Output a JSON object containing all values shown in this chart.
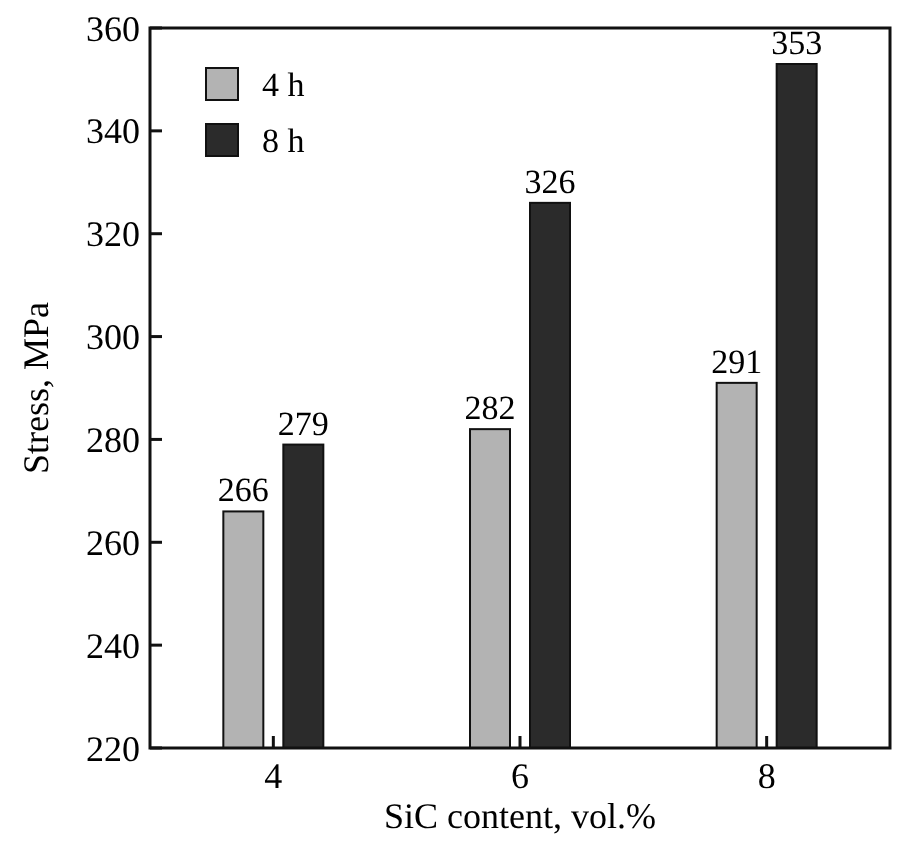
{
  "chart_data": {
    "type": "bar",
    "xlabel": "SiC content, vol.%",
    "ylabel": "Stress, MPa",
    "categories": [
      "4",
      "6",
      "8"
    ],
    "series": [
      {
        "name": "4 h",
        "color": "#b3b3b3",
        "values": [
          266,
          282,
          291
        ]
      },
      {
        "name": "8 h",
        "color": "#2b2b2b",
        "values": [
          279,
          326,
          353
        ]
      }
    ],
    "ylim": [
      220,
      360
    ],
    "yticks": [
      220,
      240,
      260,
      280,
      300,
      320,
      340,
      360
    ],
    "data_labels": true,
    "legend": "top left",
    "grid": false
  }
}
